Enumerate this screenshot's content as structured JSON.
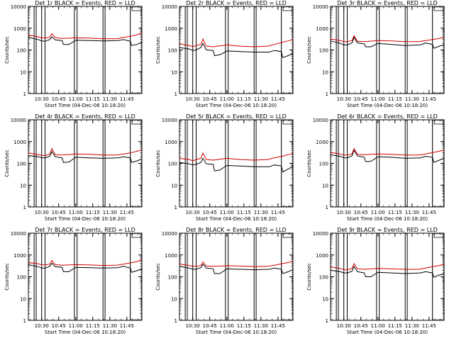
{
  "chart_data": [
    {
      "type": "line",
      "title": "Det 1r BLACK = Events, RED = LLD",
      "ylabel": "Counts/sec",
      "xlabel": "Start Time (04-Dec-06 10:18:20)",
      "x_ticks": [
        "10:30",
        "10:45",
        "11:00",
        "11:15",
        "11:30",
        "11:45"
      ],
      "y_ticks": [
        "1",
        "10",
        "100",
        "1000",
        "10000"
      ],
      "ylim": [
        1,
        10000
      ],
      "log_y": true,
      "series": [
        {
          "color": "#000000",
          "x": [
            10.3,
            10.45,
            10.5,
            10.55,
            10.62,
            10.65,
            10.7,
            10.8,
            10.82,
            10.9,
            11.0,
            11.2,
            11.4,
            11.62,
            11.7,
            11.8,
            11.82,
            11.9,
            11.97
          ],
          "y": [
            380,
            300,
            260,
            250,
            300,
            400,
            290,
            270,
            180,
            180,
            280,
            270,
            260,
            270,
            300,
            250,
            160,
            180,
            230
          ]
        },
        {
          "color": "#d40000",
          "x": [
            10.3,
            10.45,
            10.5,
            10.55,
            10.62,
            10.65,
            10.7,
            10.8,
            11.0,
            11.2,
            11.4,
            11.6,
            11.7,
            11.8,
            11.9,
            11.97
          ],
          "y": [
            480,
            400,
            360,
            350,
            380,
            560,
            370,
            340,
            360,
            350,
            330,
            330,
            380,
            420,
            500,
            600
          ]
        }
      ]
    },
    {
      "type": "line",
      "title": "Det 2r BLACK = Events, RED = LLD",
      "ylabel": "Counts/sec",
      "xlabel": "Start Time (04-Dec-06 10:18:20)",
      "x_ticks": [
        "10:30",
        "10:45",
        "11:00",
        "11:15",
        "11:30",
        "11:45"
      ],
      "y_ticks": [
        "1",
        "10",
        "100",
        "1000",
        "10000"
      ],
      "ylim": [
        1,
        10000
      ],
      "log_y": true,
      "series": [
        {
          "color": "#000000",
          "x": [
            10.3,
            10.45,
            10.5,
            10.55,
            10.62,
            10.65,
            10.7,
            10.8,
            10.82,
            10.9,
            11.0,
            11.2,
            11.4,
            11.62,
            11.7,
            11.8,
            11.82,
            11.9,
            11.97
          ],
          "y": [
            130,
            110,
            95,
            100,
            130,
            200,
            100,
            95,
            55,
            60,
            90,
            85,
            80,
            80,
            95,
            85,
            45,
            55,
            70
          ]
        },
        {
          "color": "#d40000",
          "x": [
            10.3,
            10.45,
            10.5,
            10.55,
            10.62,
            10.65,
            10.7,
            10.8,
            11.0,
            11.2,
            11.4,
            11.6,
            11.7,
            11.8,
            11.9,
            11.97
          ],
          "y": [
            190,
            160,
            140,
            160,
            180,
            320,
            150,
            140,
            170,
            150,
            140,
            150,
            180,
            220,
            260,
            300
          ]
        }
      ]
    },
    {
      "type": "line",
      "title": "Det 3r BLACK = Events, RED = LLD",
      "ylabel": "Counts/sec",
      "xlabel": "Start Time (04-Dec-06 10:18:20)",
      "x_ticks": [
        "10:30",
        "10:45",
        "11:00",
        "11:15",
        "11:30",
        "11:45"
      ],
      "y_ticks": [
        "1",
        "10",
        "100",
        "1000",
        "10000"
      ],
      "ylim": [
        1,
        10000
      ],
      "log_y": true,
      "series": [
        {
          "color": "#000000",
          "x": [
            10.3,
            10.45,
            10.5,
            10.55,
            10.62,
            10.65,
            10.7,
            10.8,
            10.82,
            10.9,
            11.0,
            11.2,
            11.4,
            11.62,
            11.7,
            11.8,
            11.82,
            11.9,
            11.97
          ],
          "y": [
            260,
            200,
            170,
            170,
            210,
            380,
            210,
            190,
            140,
            140,
            200,
            180,
            160,
            170,
            210,
            180,
            120,
            150,
            170
          ]
        },
        {
          "color": "#d40000",
          "x": [
            10.3,
            10.45,
            10.5,
            10.55,
            10.62,
            10.65,
            10.7,
            10.8,
            11.0,
            11.2,
            11.4,
            11.6,
            11.7,
            11.8,
            11.9,
            11.97
          ],
          "y": [
            320,
            270,
            240,
            240,
            270,
            450,
            250,
            240,
            270,
            260,
            240,
            240,
            270,
            300,
            340,
            380
          ]
        }
      ]
    },
    {
      "type": "line",
      "title": "Det 4r BLACK = Events, RED = LLD",
      "ylabel": "Counts/sec",
      "xlabel": "Start Time (04-Dec-06 10:18:20)",
      "x_ticks": [
        "10:30",
        "10:45",
        "11:00",
        "11:15",
        "11:30",
        "11:45"
      ],
      "y_ticks": [
        "1",
        "10",
        "100",
        "1000",
        "10000"
      ],
      "ylim": [
        1,
        10000
      ],
      "log_y": true,
      "series": [
        {
          "color": "#000000",
          "x": [
            10.3,
            10.45,
            10.5,
            10.55,
            10.62,
            10.65,
            10.7,
            10.8,
            10.82,
            10.9,
            11.0,
            11.2,
            11.4,
            11.62,
            11.7,
            11.8,
            11.82,
            11.9,
            11.97
          ],
          "y": [
            230,
            200,
            180,
            180,
            210,
            350,
            200,
            180,
            110,
            115,
            190,
            180,
            170,
            180,
            200,
            180,
            110,
            130,
            160
          ]
        },
        {
          "color": "#d40000",
          "x": [
            10.3,
            10.45,
            10.5,
            10.55,
            10.62,
            10.65,
            10.7,
            10.8,
            11.0,
            11.2,
            11.4,
            11.6,
            11.7,
            11.8,
            11.9,
            11.97
          ],
          "y": [
            300,
            250,
            230,
            230,
            260,
            480,
            250,
            240,
            270,
            260,
            240,
            240,
            270,
            300,
            360,
            420
          ]
        }
      ]
    },
    {
      "type": "line",
      "title": "Det 5r BLACK = Events, RED = LLD",
      "ylabel": "Counts/sec",
      "xlabel": "Start Time (04-Dec-06 10:18:20)",
      "x_ticks": [
        "10:30",
        "10:45",
        "11:00",
        "11:15",
        "11:30",
        "11:45"
      ],
      "y_ticks": [
        "1",
        "10",
        "100",
        "1000",
        "10000"
      ],
      "ylim": [
        1,
        10000
      ],
      "log_y": true,
      "series": [
        {
          "color": "#000000",
          "x": [
            10.3,
            10.45,
            10.5,
            10.55,
            10.62,
            10.65,
            10.7,
            10.8,
            10.82,
            10.9,
            11.0,
            11.2,
            11.4,
            11.62,
            11.7,
            11.8,
            11.82,
            11.9,
            11.97
          ],
          "y": [
            110,
            95,
            85,
            90,
            110,
            170,
            95,
            90,
            45,
            50,
            80,
            75,
            70,
            70,
            85,
            75,
            40,
            55,
            75
          ]
        },
        {
          "color": "#d40000",
          "x": [
            10.3,
            10.45,
            10.5,
            10.55,
            10.62,
            10.65,
            10.7,
            10.8,
            11.0,
            11.2,
            11.4,
            11.6,
            11.7,
            11.8,
            11.9,
            11.97
          ],
          "y": [
            170,
            150,
            130,
            150,
            170,
            300,
            150,
            140,
            170,
            150,
            140,
            150,
            180,
            210,
            250,
            280
          ]
        }
      ]
    },
    {
      "type": "line",
      "title": "Det 6r BLACK = Events, RED = LLD",
      "ylabel": "Counts/sec",
      "xlabel": "Start Time (04-Dec-06 10:18:20)",
      "x_ticks": [
        "10:30",
        "10:45",
        "11:00",
        "11:15",
        "11:30",
        "11:45"
      ],
      "y_ticks": [
        "1",
        "10",
        "100",
        "1000",
        "10000"
      ],
      "ylim": [
        1,
        10000
      ],
      "log_y": true,
      "series": [
        {
          "color": "#000000",
          "x": [
            10.3,
            10.45,
            10.5,
            10.55,
            10.62,
            10.65,
            10.7,
            10.8,
            10.82,
            10.9,
            11.0,
            11.2,
            11.4,
            11.62,
            11.7,
            11.8,
            11.82,
            11.9,
            11.97
          ],
          "y": [
            250,
            210,
            180,
            180,
            220,
            400,
            220,
            190,
            120,
            125,
            200,
            190,
            170,
            180,
            210,
            190,
            110,
            140,
            170
          ]
        },
        {
          "color": "#d40000",
          "x": [
            10.3,
            10.45,
            10.5,
            10.55,
            10.62,
            10.65,
            10.7,
            10.8,
            11.0,
            11.2,
            11.4,
            11.6,
            11.7,
            11.8,
            11.9,
            11.97
          ],
          "y": [
            320,
            270,
            240,
            240,
            270,
            480,
            260,
            250,
            270,
            260,
            240,
            240,
            270,
            310,
            360,
            400
          ]
        }
      ]
    },
    {
      "type": "line",
      "title": "Det 7r BLACK = Events, RED = LLD",
      "ylabel": "Counts/sec",
      "xlabel": "Start Time (04-Dec-06 10:18:20)",
      "x_ticks": [
        "10:30",
        "10:45",
        "11:00",
        "11:15",
        "11:30",
        "11:45"
      ],
      "y_ticks": [
        "1",
        "10",
        "100",
        "1000",
        "10000"
      ],
      "ylim": [
        1,
        10000
      ],
      "log_y": true,
      "series": [
        {
          "color": "#000000",
          "x": [
            10.3,
            10.45,
            10.5,
            10.55,
            10.62,
            10.65,
            10.7,
            10.8,
            10.82,
            10.9,
            11.0,
            11.2,
            11.4,
            11.62,
            11.7,
            11.8,
            11.82,
            11.9,
            11.97
          ],
          "y": [
            360,
            290,
            250,
            250,
            300,
            420,
            290,
            270,
            170,
            170,
            270,
            260,
            250,
            260,
            300,
            250,
            160,
            190,
            230
          ]
        },
        {
          "color": "#d40000",
          "x": [
            10.3,
            10.45,
            10.5,
            10.55,
            10.62,
            10.65,
            10.7,
            10.8,
            11.0,
            11.2,
            11.4,
            11.6,
            11.7,
            11.8,
            11.9,
            11.97
          ],
          "y": [
            450,
            390,
            350,
            350,
            380,
            560,
            360,
            340,
            360,
            350,
            330,
            340,
            380,
            430,
            500,
            600
          ]
        }
      ]
    },
    {
      "type": "line",
      "title": "Det 8r BLACK = Events, RED = LLD",
      "ylabel": "Counts/sec",
      "xlabel": "Start Time (04-Dec-06 10:18:20)",
      "x_ticks": [
        "10:30",
        "10:45",
        "11:00",
        "11:15",
        "11:30",
        "11:45"
      ],
      "y_ticks": [
        "1",
        "10",
        "100",
        "1000",
        "10000"
      ],
      "ylim": [
        1,
        10000
      ],
      "log_y": true,
      "series": [
        {
          "color": "#000000",
          "x": [
            10.3,
            10.45,
            10.5,
            10.55,
            10.62,
            10.65,
            10.7,
            10.8,
            10.82,
            10.9,
            11.0,
            11.2,
            11.4,
            11.62,
            11.7,
            11.8,
            11.82,
            11.9,
            11.97
          ],
          "y": [
            300,
            250,
            220,
            220,
            260,
            380,
            250,
            230,
            140,
            140,
            230,
            220,
            210,
            220,
            250,
            220,
            140,
            170,
            210
          ]
        },
        {
          "color": "#d40000",
          "x": [
            10.3,
            10.45,
            10.5,
            10.55,
            10.62,
            10.65,
            10.7,
            10.8,
            11.0,
            11.2,
            11.4,
            11.6,
            11.7,
            11.8,
            11.9,
            11.97
          ],
          "y": [
            380,
            330,
            300,
            300,
            330,
            480,
            310,
            300,
            320,
            310,
            290,
            300,
            340,
            390,
            450,
            520
          ]
        }
      ]
    },
    {
      "type": "line",
      "title": "Det 9r BLACK = Events, RED = LLD",
      "ylabel": "Counts/sec",
      "xlabel": "Start Time (04-Dec-06 10:18:20)",
      "x_ticks": [
        "10:30",
        "10:45",
        "11:00",
        "11:15",
        "11:30",
        "11:45"
      ],
      "y_ticks": [
        "1",
        "10",
        "100",
        "1000",
        "10000"
      ],
      "ylim": [
        1,
        10000
      ],
      "log_y": true,
      "series": [
        {
          "color": "#000000",
          "x": [
            10.3,
            10.45,
            10.5,
            10.55,
            10.62,
            10.65,
            10.7,
            10.8,
            10.82,
            10.9,
            11.0,
            11.2,
            11.4,
            11.62,
            11.7,
            11.8,
            11.82,
            11.9,
            11.97
          ],
          "y": [
            200,
            170,
            150,
            150,
            180,
            300,
            170,
            150,
            100,
            100,
            160,
            150,
            140,
            150,
            170,
            150,
            95,
            120,
            140
          ]
        },
        {
          "color": "#d40000",
          "x": [
            10.3,
            10.45,
            10.5,
            10.55,
            10.62,
            10.65,
            10.7,
            10.8,
            11.0,
            11.2,
            11.4,
            11.6,
            11.7,
            11.8,
            11.9,
            11.97
          ],
          "y": [
            280,
            240,
            210,
            210,
            240,
            400,
            230,
            220,
            240,
            230,
            220,
            220,
            250,
            290,
            330,
            370
          ]
        }
      ]
    }
  ]
}
